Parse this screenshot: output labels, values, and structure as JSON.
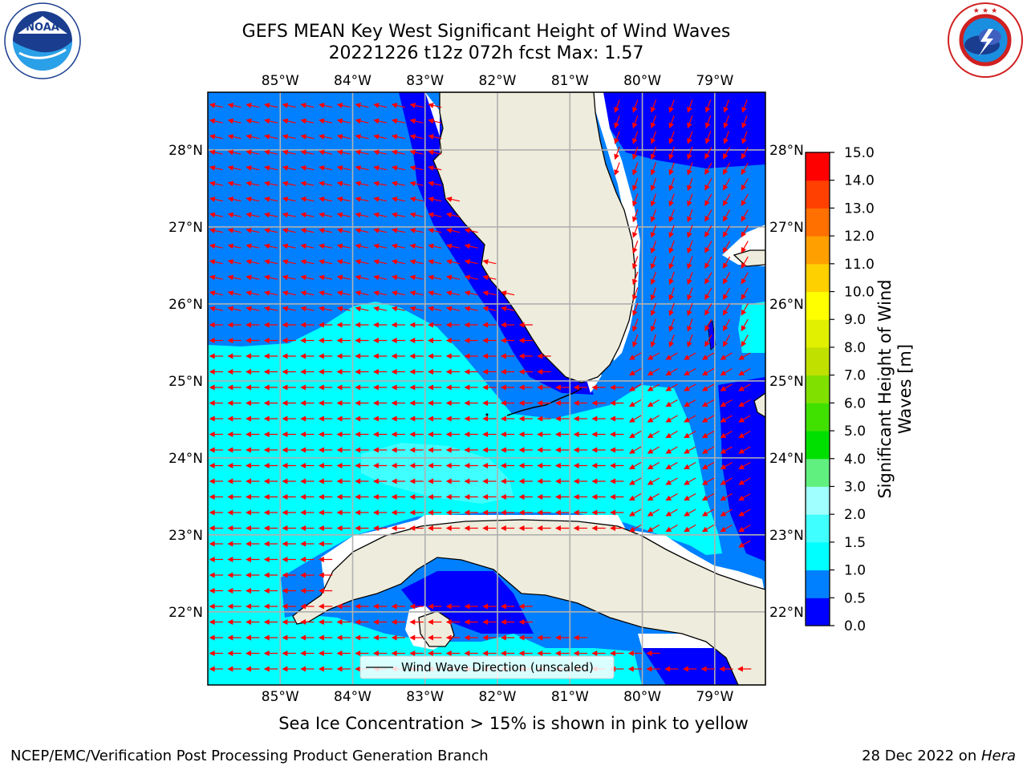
{
  "header": {
    "title_line1": "GEFS MEAN Key West Significant Height of Wind Waves",
    "title_line2": "20221226 t12z 072h fcst   Max: 1.57"
  },
  "logos": {
    "noaa": {
      "text": "NOAA",
      "ring_text": "NATIONAL OCEANIC AND ATMOSPHERIC ADMINISTRATION · U.S. DEPARTMENT OF COMMERCE"
    },
    "nws": {
      "ring_text": "NATIONAL WEATHER SERVICE"
    }
  },
  "map": {
    "lon_labels": [
      "85°W",
      "84°W",
      "83°W",
      "82°W",
      "81°W",
      "80°W",
      "79°W"
    ],
    "lat_labels": [
      "28°N",
      "27°N",
      "26°N",
      "25°N",
      "24°N",
      "23°N",
      "22°N"
    ],
    "lon_range": [
      -86,
      -78.3
    ],
    "lat_range": [
      21.05,
      28.75
    ],
    "legend_label": "Wind Wave Direction (unscaled)",
    "arrow_color": "#ff0000",
    "land_color": "#eeecdc",
    "coast_color": "#000000",
    "grid_color": "#b0b0b0",
    "wave_direction_note": "waves propagate mostly westward, turning south-westward east of Florida"
  },
  "colorbar": {
    "title": "Significant Height of Wind Waves [m]",
    "tick_labels": [
      "0.0",
      "0.5",
      "1.0",
      "1.5",
      "2.0",
      "3.0",
      "4.0",
      "5.0",
      "6.0",
      "7.0",
      "8.0",
      "9.0",
      "10.0",
      "11.0",
      "12.0",
      "13.0",
      "14.0",
      "15.0"
    ],
    "colors": [
      "#0000ff",
      "#0080ff",
      "#00ffff",
      "#40ffff",
      "#a0ffff",
      "#60f080",
      "#00e000",
      "#40e000",
      "#80e000",
      "#c0e000",
      "#e0f000",
      "#ffff00",
      "#ffd000",
      "#ffa000",
      "#ff7000",
      "#ff4000",
      "#ff0000"
    ]
  },
  "notes": {
    "ice": "Sea Ice Concentration > 15% is shown in pink to yellow"
  },
  "footer": {
    "left": "NCEP/EMC/Verification Post Processing Product Generation Branch",
    "date": "28 Dec 2022 on ",
    "machine": "Hera"
  }
}
